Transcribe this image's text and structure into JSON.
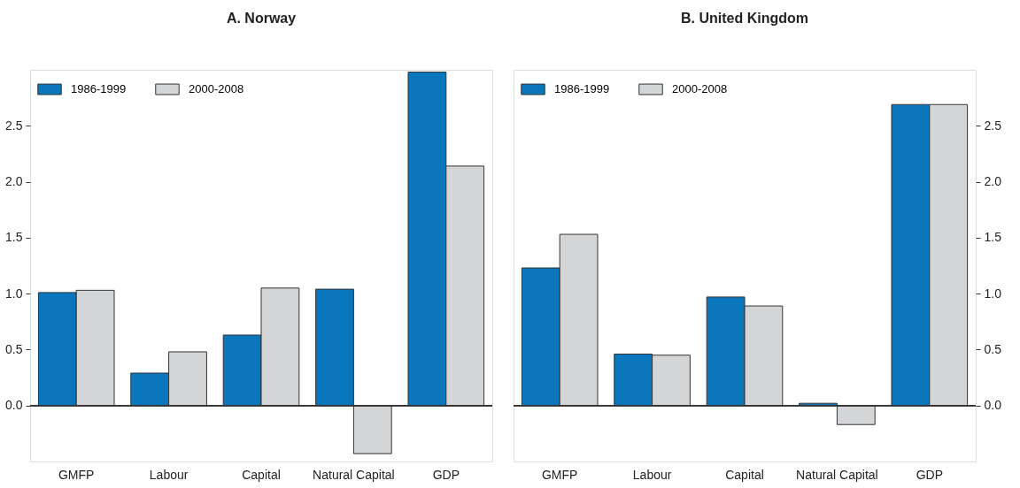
{
  "chart_data": [
    {
      "type": "bar",
      "title": "A. Norway",
      "categories": [
        "GMFP",
        "Labour",
        "Capital",
        "Natural Capital",
        "GDP"
      ],
      "series": [
        {
          "name": "1986-1999",
          "color": "#0a77bd",
          "values": [
            1.01,
            0.29,
            0.63,
            1.04,
            2.98
          ]
        },
        {
          "name": "2000-2008",
          "color": "#d4d5d7",
          "values": [
            1.03,
            0.48,
            1.05,
            -0.43,
            2.14
          ]
        }
      ],
      "ylim": [
        -0.5,
        3.0
      ],
      "yticks": [
        {
          "value": 0,
          "label": "0.0"
        },
        0.5,
        {
          "value": 1,
          "label": "1.0"
        },
        1.5,
        {
          "value": 2,
          "label": "2.0"
        },
        2.5
      ],
      "grid": false,
      "legend": "top left",
      "ref_lines": [
        {
          "axis": "y",
          "value": 0,
          "color": "#333333"
        }
      ]
    },
    {
      "type": "bar",
      "title": "B. United Kingdom",
      "categories": [
        "GMFP",
        "Labour",
        "Capital",
        "Natural Capital",
        "GDP"
      ],
      "series": [
        {
          "name": "1986-1999",
          "color": "#0a77bd",
          "values": [
            1.23,
            0.46,
            0.97,
            0.02,
            2.69
          ]
        },
        {
          "name": "2000-2008",
          "color": "#d4d5d7",
          "values": [
            1.53,
            0.45,
            0.89,
            -0.17,
            2.69
          ]
        }
      ],
      "ylim": [
        -0.5,
        3.0
      ],
      "yticks": [
        {
          "value": 0,
          "label": "0.0"
        },
        0.5,
        {
          "value": 1,
          "label": "1.0"
        },
        1.5,
        {
          "value": 2,
          "label": "2.0"
        },
        2.5
      ],
      "grid": false,
      "legend": "top left",
      "ref_lines": [
        {
          "axis": "y",
          "value": 0,
          "color": "#333333"
        }
      ]
    }
  ]
}
